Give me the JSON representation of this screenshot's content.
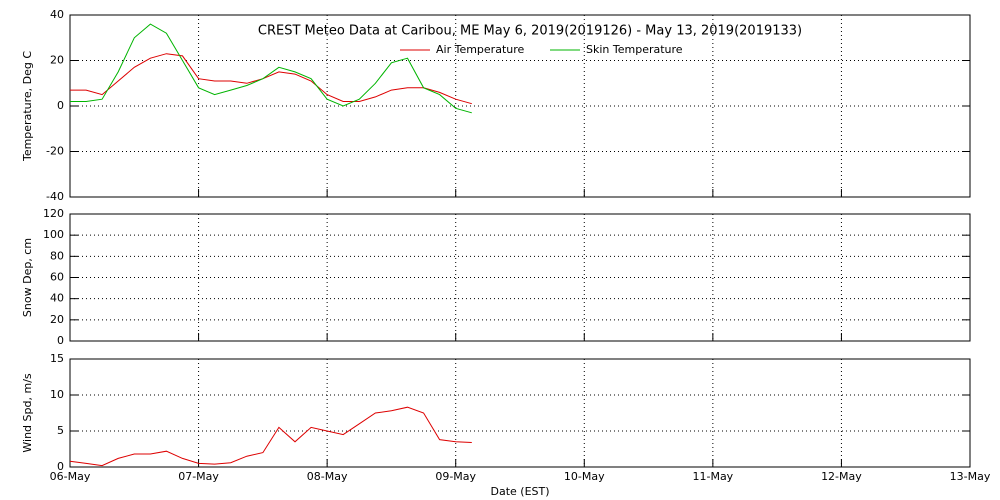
{
  "chart_data": [
    {
      "type": "line",
      "title": "CREST Meteo Data at Caribou, ME   May  6, 2019(2019126) - May 13, 2019(2019133)",
      "y_label": "Temperature, Deg C",
      "x": [
        0,
        0.125,
        0.25,
        0.375,
        0.5,
        0.625,
        0.75,
        0.875,
        1,
        1.125,
        1.25,
        1.375,
        1.5,
        1.625,
        1.75,
        1.875,
        2,
        2.125,
        2.25,
        2.375,
        2.5,
        2.625,
        2.75,
        2.875,
        3,
        3.125
      ],
      "xlim": [
        0,
        7
      ],
      "xticks": [
        0,
        1,
        2,
        3,
        4,
        5,
        6,
        7
      ],
      "ylim": [
        -40,
        40
      ],
      "yticks": [
        -40,
        -20,
        0,
        20,
        40
      ],
      "grid": true,
      "legend": "top",
      "series": [
        {
          "name": "Air Temperature",
          "color": "#dd0000",
          "values": [
            7,
            7,
            5,
            11,
            17,
            21,
            23,
            22,
            12,
            11,
            11,
            10,
            12,
            15,
            14,
            11,
            5,
            2,
            2,
            4,
            7,
            8,
            8,
            6,
            3,
            1
          ]
        },
        {
          "name": "Skin Temperature",
          "color": "#00b400",
          "values": [
            2,
            2,
            3,
            15,
            30,
            36,
            32,
            20,
            8,
            5,
            7,
            9,
            12,
            17,
            15,
            12,
            3,
            0,
            3,
            10,
            19,
            21,
            8,
            5,
            -1,
            -3
          ]
        }
      ]
    },
    {
      "type": "line",
      "y_label": "Snow Dep, cm",
      "xlim": [
        0,
        7
      ],
      "xticks": [
        0,
        1,
        2,
        3,
        4,
        5,
        6,
        7
      ],
      "ylim": [
        0,
        120
      ],
      "yticks": [
        0,
        20,
        40,
        60,
        80,
        100,
        120
      ],
      "grid": true
    },
    {
      "type": "line",
      "y_label": "Wind Spd, m/s",
      "x_label": "Date (EST)",
      "x": [
        0,
        0.125,
        0.25,
        0.375,
        0.5,
        0.625,
        0.75,
        0.875,
        1,
        1.125,
        1.25,
        1.375,
        1.5,
        1.625,
        1.75,
        1.875,
        2,
        2.125,
        2.25,
        2.375,
        2.5,
        2.625,
        2.75,
        2.875,
        3,
        3.125
      ],
      "xlim": [
        0,
        7
      ],
      "xticks": [
        {
          "value": 0,
          "label": "06-May"
        },
        {
          "value": 1,
          "label": "07-May"
        },
        {
          "value": 2,
          "label": "08-May"
        },
        {
          "value": 3,
          "label": "09-May"
        },
        {
          "value": 4,
          "label": "10-May"
        },
        {
          "value": 5,
          "label": "11-May"
        },
        {
          "value": 6,
          "label": "12-May"
        },
        {
          "value": 7,
          "label": "13-May"
        }
      ],
      "ylim": [
        0,
        15
      ],
      "yticks": [
        0,
        5,
        10,
        15
      ],
      "grid": true,
      "series": [
        {
          "color": "#dd0000",
          "values": [
            0.8,
            0.5,
            0.2,
            1.2,
            1.8,
            1.8,
            2.2,
            1.2,
            0.5,
            0.4,
            0.6,
            1.5,
            2.0,
            5.5,
            3.5,
            5.5,
            5.0,
            4.5,
            6.0,
            7.5,
            7.8,
            8.3,
            7.5,
            3.8,
            3.5,
            3.4
          ]
        }
      ]
    }
  ]
}
